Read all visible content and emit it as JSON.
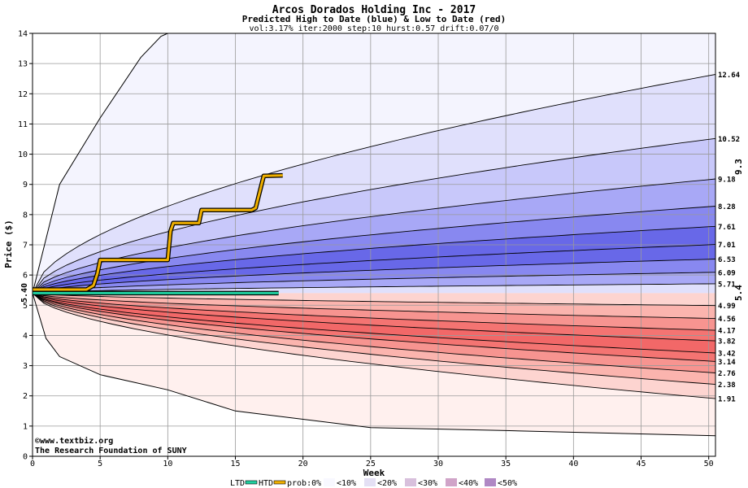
{
  "header": {
    "title": "Arcos Dorados Holding Inc - 2017",
    "subtitle": "Predicted High to Date (blue) &  Low to Date (red)",
    "params": "vol:3.17% iter:2000 step:10 hurst:0.57 drift:0.07/0"
  },
  "credit": {
    "line1": "©www.textbiz.org",
    "line2": "The Research Foundation of SUNY"
  },
  "legend": {
    "ltd": "LTD",
    "htd": "HTD",
    "prob": "prob:0%",
    "b10": "<10%",
    "b20": "<20%",
    "b30": "<30%",
    "b40": "<40%",
    "b50": "<50%"
  },
  "chart_data": {
    "type": "area",
    "title": "Arcos Dorados Holding Inc - 2017",
    "subtitle": "Predicted High to Date (blue) &  Low to Date (red)",
    "xlabel": "Week",
    "ylabel": "Price ($)",
    "xlim": [
      0,
      50.5
    ],
    "ylim": [
      0,
      14
    ],
    "xticks": [
      0,
      5,
      10,
      15,
      20,
      25,
      30,
      35,
      40,
      45,
      50
    ],
    "yticks": [
      0,
      1,
      2,
      3,
      4,
      5,
      6,
      7,
      8,
      9,
      10,
      11,
      12,
      13,
      14
    ],
    "grid": true,
    "start_price": 5.4,
    "start_label": "5.40",
    "colors": {
      "high_band": [
        "#f4f4fe",
        "#e0e0fc",
        "#c8c8fa",
        "#a8a8f6",
        "#8888f0",
        "#6868e8"
      ],
      "low_band": [
        "#fff0ee",
        "#fdd4d0",
        "#fbb4ae",
        "#f79490",
        "#f47472",
        "#f26868"
      ],
      "htd": "#f0b000",
      "ltd": "#20d0a0",
      "right_label_high": "#b08800",
      "right_label_low": "#0a9a7a"
    },
    "high_quantiles": [
      {
        "end": 12.64,
        "label": "12.64"
      },
      {
        "end": 10.52,
        "label": "10.52"
      },
      {
        "end": 9.18,
        "label": "9.18"
      },
      {
        "end": 8.28,
        "label": "8.28"
      },
      {
        "end": 7.61,
        "label": "7.61"
      },
      {
        "end": 7.01,
        "label": "7.01"
      },
      {
        "end": 6.53,
        "label": "6.53"
      },
      {
        "end": 6.09,
        "label": "6.09"
      },
      {
        "end": 5.71,
        "label": "5.71"
      }
    ],
    "low_quantiles": [
      {
        "end": 4.99,
        "label": "4.99"
      },
      {
        "end": 4.56,
        "label": "4.56"
      },
      {
        "end": 4.17,
        "label": "4.17"
      },
      {
        "end": 3.82,
        "label": "3.82"
      },
      {
        "end": 3.42,
        "label": "3.42"
      },
      {
        "end": 3.14,
        "label": "3.14"
      },
      {
        "end": 2.76,
        "label": "2.76"
      },
      {
        "end": 2.38,
        "label": "2.38"
      },
      {
        "end": 1.91,
        "label": "1.91"
      }
    ],
    "outer_high": [
      [
        0,
        5.4
      ],
      [
        2,
        9.0
      ],
      [
        5,
        11.2
      ],
      [
        8,
        13.2
      ],
      [
        9.5,
        13.9
      ],
      [
        10,
        14
      ]
    ],
    "outer_low": [
      [
        0,
        5.4
      ],
      [
        1,
        3.9
      ],
      [
        2,
        3.3
      ],
      [
        5,
        2.7
      ],
      [
        10,
        2.2
      ],
      [
        15,
        1.5
      ],
      [
        25,
        0.95
      ],
      [
        35,
        0.85
      ],
      [
        50.5,
        0.68
      ]
    ],
    "htd_path": [
      [
        0,
        5.52
      ],
      [
        4,
        5.52
      ],
      [
        4.5,
        5.65
      ],
      [
        4.8,
        6.05
      ],
      [
        5,
        6.5
      ],
      [
        10,
        6.5
      ],
      [
        10.2,
        7.45
      ],
      [
        10.4,
        7.72
      ],
      [
        12.3,
        7.72
      ],
      [
        12.5,
        8.15
      ],
      [
        16.2,
        8.15
      ],
      [
        16.5,
        8.22
      ],
      [
        16.8,
        8.75
      ],
      [
        17.1,
        9.28
      ],
      [
        18.5,
        9.3
      ]
    ],
    "ltd_path": [
      [
        0,
        5.4
      ],
      [
        18.2,
        5.4
      ]
    ],
    "right_labels": {
      "high": "9.3",
      "low": "5.4"
    }
  }
}
